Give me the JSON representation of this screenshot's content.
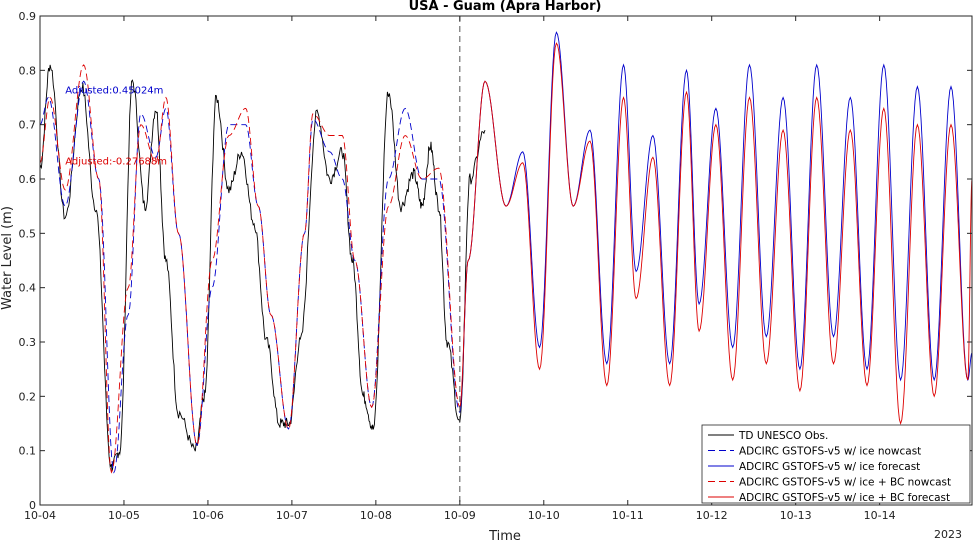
{
  "chart_data": {
    "type": "line",
    "title": "USA - Guam (Apra Harbor)",
    "xlabel": "Time",
    "ylabel": "Water Level (m)",
    "xlim": [
      0,
      11.1
    ],
    "ylim": [
      0,
      0.9
    ],
    "x_ticks": [
      0,
      1,
      2,
      3,
      4,
      5,
      6,
      7,
      8,
      9,
      10
    ],
    "x_tick_labels": [
      "10-04",
      "10-05",
      "10-06",
      "10-07",
      "10-08",
      "10-09",
      "10-10",
      "10-11",
      "10-12",
      "10-13",
      "10-14"
    ],
    "x_corner_label": "2023",
    "y_ticks": [
      0,
      0.1,
      0.2,
      0.3,
      0.4,
      0.5,
      0.6,
      0.7,
      0.8,
      0.9
    ],
    "y_tick_labels": [
      "0",
      "0.1",
      "0.2",
      "0.3",
      "0.4",
      "0.5",
      "0.6",
      "0.7",
      "0.8",
      "0.9"
    ],
    "grid": false,
    "legend_position": "bottom-right",
    "vline_x": 5.0,
    "annotations": [
      {
        "text": "Adjusted:0.45024m",
        "x": 0.3,
        "y": 0.757,
        "color": "#0000cc"
      },
      {
        "text": "Adjusted:-0.27688m",
        "x": 0.3,
        "y": 0.627,
        "color": "#dd0000"
      }
    ],
    "series": [
      {
        "name": "TD UNESCO Obs.",
        "color": "#000000",
        "style": "solid",
        "x": [
          0,
          0.12,
          0.3,
          0.5,
          0.66,
          0.85,
          0.95,
          1.1,
          1.25,
          1.38,
          1.5,
          1.65,
          1.85,
          1.96,
          2.1,
          2.25,
          2.4,
          2.55,
          2.7,
          2.85,
          2.97,
          3.1,
          3.3,
          3.45,
          3.6,
          3.72,
          3.85,
          3.97,
          4.15,
          4.3,
          4.45,
          4.55,
          4.65,
          4.75,
          4.85,
          5.0,
          5.12,
          5.3
        ],
        "y": [
          0.62,
          0.81,
          0.53,
          0.77,
          0.55,
          0.07,
          0.1,
          0.78,
          0.55,
          0.73,
          0.45,
          0.17,
          0.1,
          0.2,
          0.75,
          0.58,
          0.65,
          0.52,
          0.3,
          0.15,
          0.15,
          0.3,
          0.72,
          0.6,
          0.65,
          0.45,
          0.2,
          0.14,
          0.76,
          0.55,
          0.61,
          0.55,
          0.66,
          0.55,
          0.3,
          0.15,
          0.6,
          0.69
        ]
      },
      {
        "name": "ADCIRC GSTOFS-v5 w/ ice nowcast",
        "color": "#0000cc",
        "style": "dashed",
        "x": [
          0,
          0.1,
          0.3,
          0.52,
          0.7,
          0.88,
          1.05,
          1.2,
          1.38,
          1.5,
          1.65,
          1.87,
          2.05,
          2.25,
          2.45,
          2.6,
          2.75,
          2.96,
          3.15,
          3.25,
          3.45,
          3.6,
          3.75,
          3.95,
          4.15,
          4.35,
          4.55,
          4.75,
          5.0
        ],
        "y": [
          0.7,
          0.75,
          0.55,
          0.78,
          0.6,
          0.06,
          0.35,
          0.72,
          0.64,
          0.73,
          0.5,
          0.11,
          0.4,
          0.7,
          0.7,
          0.55,
          0.35,
          0.14,
          0.5,
          0.71,
          0.65,
          0.6,
          0.45,
          0.18,
          0.6,
          0.73,
          0.6,
          0.6,
          0.17
        ]
      },
      {
        "name": "ADCIRC GSTOFS-v5 w/ ice forecast",
        "color": "#0000cc",
        "style": "solid",
        "x": [
          5.0,
          5.1,
          5.3,
          5.55,
          5.75,
          5.95,
          6.15,
          6.35,
          6.55,
          6.75,
          6.95,
          7.1,
          7.3,
          7.5,
          7.7,
          7.85,
          8.05,
          8.25,
          8.45,
          8.65,
          8.85,
          9.05,
          9.25,
          9.45,
          9.65,
          9.85,
          10.05,
          10.25,
          10.45,
          10.65,
          10.85,
          11.05,
          11.1
        ],
        "y": [
          0.17,
          0.45,
          0.78,
          0.55,
          0.65,
          0.29,
          0.87,
          0.55,
          0.69,
          0.26,
          0.81,
          0.43,
          0.68,
          0.26,
          0.8,
          0.37,
          0.73,
          0.29,
          0.81,
          0.31,
          0.75,
          0.25,
          0.81,
          0.31,
          0.75,
          0.25,
          0.81,
          0.23,
          0.77,
          0.23,
          0.77,
          0.23,
          0.28
        ]
      },
      {
        "name": "ADCIRC GSTOFS-v5 w/ ice + BC nowcast",
        "color": "#dd0000",
        "style": "dashed",
        "x": [
          0,
          0.12,
          0.3,
          0.52,
          0.7,
          0.85,
          1.05,
          1.2,
          1.38,
          1.5,
          1.65,
          1.87,
          2.05,
          2.25,
          2.45,
          2.6,
          2.75,
          2.96,
          3.15,
          3.25,
          3.45,
          3.6,
          3.75,
          3.95,
          4.15,
          4.35,
          4.55,
          4.75,
          5.0
        ],
        "y": [
          0.63,
          0.75,
          0.58,
          0.81,
          0.6,
          0.06,
          0.4,
          0.7,
          0.63,
          0.75,
          0.5,
          0.11,
          0.45,
          0.68,
          0.73,
          0.55,
          0.35,
          0.14,
          0.5,
          0.72,
          0.68,
          0.68,
          0.45,
          0.18,
          0.55,
          0.68,
          0.6,
          0.62,
          0.18
        ]
      },
      {
        "name": "ADCIRC GSTOFS-v5 w/ ice + BC forecast",
        "color": "#dd0000",
        "style": "solid",
        "x": [
          5.0,
          5.1,
          5.3,
          5.55,
          5.75,
          5.95,
          6.15,
          6.35,
          6.55,
          6.75,
          6.95,
          7.1,
          7.3,
          7.5,
          7.7,
          7.85,
          8.05,
          8.25,
          8.45,
          8.65,
          8.85,
          9.05,
          9.25,
          9.45,
          9.65,
          9.85,
          10.05,
          10.25,
          10.45,
          10.65,
          10.85,
          11.05,
          11.1
        ],
        "y": [
          0.18,
          0.45,
          0.78,
          0.55,
          0.63,
          0.25,
          0.85,
          0.55,
          0.67,
          0.22,
          0.75,
          0.38,
          0.64,
          0.22,
          0.76,
          0.32,
          0.7,
          0.23,
          0.75,
          0.26,
          0.69,
          0.21,
          0.75,
          0.26,
          0.69,
          0.22,
          0.73,
          0.15,
          0.7,
          0.2,
          0.7,
          0.23,
          0.6
        ]
      }
    ]
  }
}
